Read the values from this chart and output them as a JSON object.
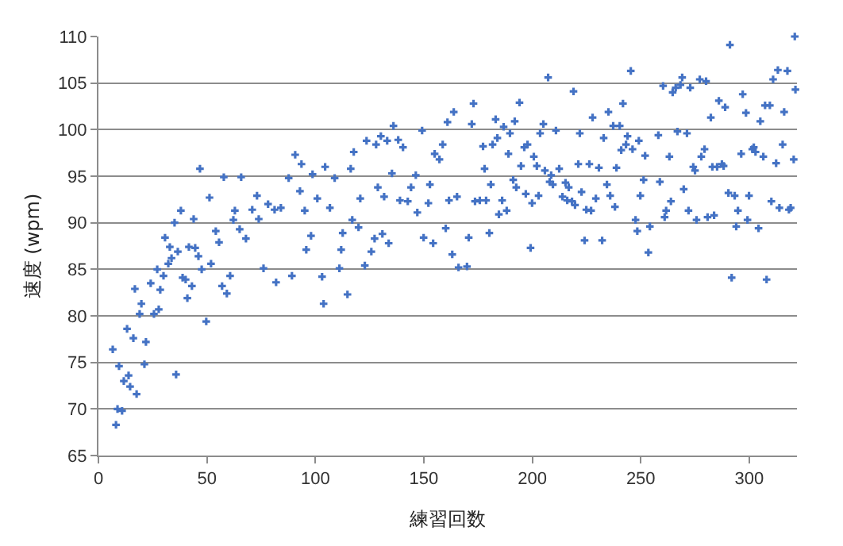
{
  "chart_data": {
    "type": "scatter",
    "xlabel": "練習回数",
    "ylabel": "速度 (wpm)",
    "xlim": [
      0,
      322
    ],
    "ylim": [
      65,
      110
    ],
    "xticks": [
      0,
      50,
      100,
      150,
      200,
      250,
      300
    ],
    "yticks": [
      65,
      70,
      75,
      80,
      85,
      90,
      95,
      100,
      105,
      110
    ],
    "grid": "y",
    "marker": "cross",
    "series": [
      {
        "color": "#4472c4",
        "x": [
          6.6,
          8.1,
          8.8,
          9.5,
          10.9,
          11.7,
          13.2,
          13.9,
          14.6,
          16.1,
          16.8,
          17.6,
          19.0,
          19.8,
          21.2,
          21.9,
          24.1,
          25.6,
          27.1,
          27.8,
          28.5,
          30.0,
          30.7,
          32.2,
          32.9,
          33.7,
          35.1,
          35.8,
          36.6,
          38.0,
          38.8,
          40.2,
          41.0,
          41.7,
          43.1,
          43.9,
          44.6,
          46.1,
          46.8,
          47.6,
          49.7,
          51.2,
          51.9,
          54.1,
          55.6,
          57.0,
          57.8,
          59.2,
          60.7,
          62.2,
          62.9,
          65.1,
          65.8,
          68.0,
          70.9,
          73.1,
          73.9,
          76.1,
          78.2,
          81.2,
          81.9,
          84.1,
          87.7,
          89.2,
          90.7,
          92.9,
          93.6,
          95.1,
          95.8,
          98.0,
          98.7,
          100.9,
          103.1,
          103.8,
          104.5,
          106.7,
          108.9,
          111.1,
          111.9,
          112.6,
          114.8,
          116.3,
          117.0,
          117.7,
          119.9,
          120.7,
          122.8,
          123.6,
          125.8,
          127.3,
          128.0,
          128.8,
          130.2,
          130.9,
          131.7,
          133.1,
          133.8,
          135.3,
          136.0,
          138.2,
          139.0,
          140.4,
          142.6,
          144.1,
          146.3,
          147.0,
          149.2,
          149.9,
          152.1,
          152.8,
          154.3,
          155.0,
          157.2,
          158.7,
          160.1,
          160.9,
          161.6,
          163.1,
          163.8,
          165.3,
          166.0,
          169.9,
          170.7,
          172.1,
          172.9,
          173.6,
          175.8,
          177.3,
          178.0,
          178.7,
          180.2,
          180.9,
          181.7,
          183.1,
          183.9,
          184.6,
          186.1,
          186.8,
          188.2,
          189.0,
          189.7,
          191.2,
          191.9,
          192.6,
          194.1,
          194.8,
          196.3,
          197.0,
          197.8,
          199.2,
          199.9,
          200.7,
          202.1,
          202.9,
          203.6,
          205.1,
          205.8,
          207.3,
          208.0,
          208.7,
          209.5,
          210.9,
          212.4,
          213.9,
          215.3,
          216.1,
          216.8,
          218.3,
          219.0,
          219.7,
          221.2,
          221.9,
          222.7,
          224.1,
          224.9,
          226.3,
          227.1,
          227.8,
          229.3,
          230.7,
          232.2,
          232.9,
          234.4,
          235.1,
          235.9,
          237.3,
          238.1,
          238.8,
          240.3,
          241.0,
          241.8,
          243.2,
          243.9,
          245.4,
          246.2,
          247.6,
          248.4,
          249.1,
          249.8,
          251.3,
          252.0,
          253.5,
          254.2,
          258.1,
          258.8,
          260.3,
          261.0,
          261.7,
          263.2,
          263.9,
          264.7,
          266.1,
          266.9,
          268.3,
          269.1,
          269.8,
          271.3,
          272.0,
          272.8,
          274.2,
          275.0,
          275.7,
          277.2,
          277.9,
          279.4,
          280.1,
          280.8,
          282.3,
          283.0,
          283.8,
          285.2,
          286.0,
          287.4,
          288.2,
          288.9,
          290.4,
          291.1,
          291.9,
          293.3,
          294.0,
          294.8,
          296.3,
          297.0,
          298.5,
          299.2,
          299.9,
          301.4,
          302.1,
          302.9,
          304.3,
          305.1,
          306.5,
          307.3,
          308.0,
          309.5,
          310.2,
          311.0,
          312.4,
          313.2,
          313.9,
          315.4,
          316.1,
          317.6,
          318.3,
          319.1,
          320.5,
          321.0,
          321.3
        ],
        "values": [
          76.4,
          68.3,
          70.0,
          74.6,
          69.8,
          73.0,
          78.6,
          73.6,
          72.4,
          77.6,
          82.9,
          71.6,
          80.2,
          81.3,
          74.8,
          77.2,
          83.5,
          80.2,
          85.0,
          80.7,
          82.8,
          84.3,
          88.4,
          85.6,
          87.4,
          86.2,
          90.0,
          73.7,
          86.9,
          91.3,
          84.1,
          83.9,
          81.9,
          87.4,
          83.2,
          90.4,
          87.3,
          86.4,
          95.8,
          85.0,
          79.4,
          92.7,
          85.6,
          89.1,
          87.9,
          83.2,
          94.9,
          82.4,
          84.3,
          90.3,
          91.3,
          89.3,
          94.9,
          88.3,
          91.4,
          92.9,
          90.4,
          85.1,
          92.0,
          91.4,
          83.6,
          91.6,
          94.8,
          84.3,
          97.3,
          93.4,
          96.3,
          91.3,
          87.1,
          88.6,
          95.2,
          92.6,
          84.2,
          81.3,
          96.0,
          91.6,
          94.8,
          85.1,
          87.1,
          88.9,
          82.3,
          95.8,
          90.3,
          97.6,
          89.5,
          92.6,
          85.4,
          98.8,
          86.9,
          88.3,
          98.4,
          93.8,
          99.3,
          88.8,
          92.8,
          98.8,
          87.8,
          95.3,
          100.4,
          98.9,
          92.4,
          98.1,
          92.3,
          93.8,
          95.1,
          91.1,
          99.9,
          88.4,
          92.1,
          94.1,
          87.8,
          97.4,
          96.8,
          98.4,
          89.4,
          100.8,
          92.4,
          86.6,
          101.9,
          92.8,
          85.2,
          85.3,
          88.4,
          100.6,
          102.8,
          92.3,
          92.4,
          98.2,
          95.8,
          92.4,
          88.9,
          94.1,
          98.4,
          101.1,
          99.1,
          90.9,
          92.4,
          100.3,
          91.3,
          97.4,
          99.6,
          94.6,
          100.9,
          93.8,
          102.9,
          96.1,
          98.1,
          93.1,
          98.4,
          87.3,
          92.1,
          97.1,
          96.1,
          92.9,
          99.6,
          100.6,
          95.6,
          105.6,
          94.4,
          95.1,
          94.1,
          99.9,
          95.8,
          92.8,
          94.3,
          92.4,
          93.8,
          92.3,
          104.1,
          91.9,
          96.3,
          99.6,
          93.3,
          88.1,
          91.4,
          96.3,
          91.3,
          101.3,
          92.6,
          95.9,
          88.1,
          99.1,
          94.1,
          101.9,
          92.9,
          100.4,
          91.7,
          95.9,
          100.4,
          97.8,
          102.8,
          98.4,
          99.3,
          106.3,
          97.9,
          90.3,
          89.1,
          98.8,
          92.9,
          94.6,
          97.2,
          86.8,
          89.6,
          99.4,
          94.4,
          104.7,
          90.6,
          91.3,
          97.1,
          92.3,
          104.0,
          104.5,
          99.8,
          104.8,
          105.6,
          93.6,
          99.6,
          91.3,
          104.5,
          96.0,
          95.6,
          90.3,
          105.4,
          97.1,
          97.9,
          105.2,
          90.6,
          101.3,
          96.0,
          90.8,
          96.0,
          103.1,
          96.3,
          96.1,
          102.4,
          93.2,
          109.1,
          84.1,
          92.9,
          89.6,
          91.3,
          97.4,
          103.8,
          101.8,
          90.3,
          92.9,
          97.9,
          98.1,
          97.6,
          89.4,
          100.9,
          97.1,
          102.6,
          83.9,
          102.6,
          92.3,
          105.4,
          96.4,
          106.4,
          91.6,
          98.4,
          101.9,
          106.3,
          91.4,
          91.6,
          96.8,
          110.0,
          104.3
        ]
      }
    ]
  }
}
